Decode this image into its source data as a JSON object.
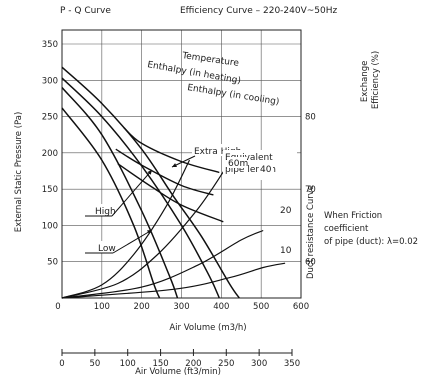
{
  "chart_data": {
    "type": "line",
    "title_left": "P - Q Curve",
    "title_right": "Efficiency Curve – 220-240V~50Hz",
    "ylabel_left": "External Static Pressure (Pa)",
    "ylabel_right": "Exchange Efficiency (%)",
    "duct_axis_label": "Duct resistance Curve",
    "xlabel": "Air Volume (m3/h)",
    "x2label": "Air Volume (ft3/min)",
    "x_ticks": [
      0,
      100,
      200,
      300,
      400,
      500,
      600
    ],
    "x2_ticks": [
      0,
      50,
      100,
      150,
      200,
      250,
      300,
      350
    ],
    "y_ticks": [
      50,
      100,
      150,
      200,
      250,
      300,
      350
    ],
    "y2_ticks": [
      60,
      70,
      80
    ],
    "xlim": [
      0,
      600
    ],
    "ylim": [
      0,
      350
    ],
    "x2lim": [
      0,
      353
    ],
    "y2lim": [
      50,
      80
    ],
    "grid": true,
    "pq_series": [
      {
        "id": "extra-high-a",
        "points": [
          [
            0,
            318
          ],
          [
            100,
            268
          ],
          [
            200,
            205
          ],
          [
            280,
            140
          ],
          [
            350,
            85
          ],
          [
            420,
            20
          ],
          [
            445,
            0
          ]
        ]
      },
      {
        "id": "extra-high-b",
        "points": [
          [
            0,
            303
          ],
          [
            100,
            250
          ],
          [
            200,
            182
          ],
          [
            300,
            100
          ],
          [
            370,
            30
          ],
          [
            395,
            0
          ]
        ]
      },
      {
        "id": "high",
        "points": [
          [
            0,
            290
          ],
          [
            100,
            225
          ],
          [
            200,
            120
          ],
          [
            270,
            30
          ],
          [
            290,
            0
          ]
        ]
      },
      {
        "id": "low",
        "points": [
          [
            0,
            262
          ],
          [
            100,
            190
          ],
          [
            180,
            100
          ],
          [
            230,
            20
          ],
          [
            245,
            0
          ]
        ]
      }
    ],
    "efficiency_series": [
      {
        "name": "Temperature",
        "points": [
          [
            155,
            78.5
          ],
          [
            200,
            76.3
          ],
          [
            300,
            73.8
          ],
          [
            395,
            72.3
          ]
        ]
      },
      {
        "name": "Enthalpy (in heating)",
        "points": [
          [
            135,
            75.5
          ],
          [
            200,
            73.3
          ],
          [
            300,
            70.5
          ],
          [
            380,
            69.2
          ]
        ]
      },
      {
        "name": "Enthalpy (in cooling)",
        "points": [
          [
            140,
            73.5
          ],
          [
            220,
            70.5
          ],
          [
            300,
            67.8
          ],
          [
            405,
            65.5
          ]
        ]
      }
    ],
    "duct_curves": [
      {
        "label": "60m",
        "points": [
          [
            0,
            0
          ],
          [
            100,
            18
          ],
          [
            180,
            60
          ],
          [
            260,
            125
          ],
          [
            320,
            190
          ]
        ]
      },
      {
        "label": "40",
        "points": [
          [
            0,
            0
          ],
          [
            140,
            20
          ],
          [
            240,
            60
          ],
          [
            340,
            122
          ],
          [
            410,
            178
          ]
        ]
      },
      {
        "label": "20",
        "points": [
          [
            0,
            0
          ],
          [
            200,
            15
          ],
          [
            340,
            45
          ],
          [
            450,
            80
          ],
          [
            505,
            93
          ]
        ]
      },
      {
        "label": "10",
        "points": [
          [
            0,
            0
          ],
          [
            280,
            12
          ],
          [
            420,
            28
          ],
          [
            505,
            42
          ],
          [
            560,
            48
          ]
        ]
      }
    ],
    "annotations": {
      "extra_high": "Extra High",
      "high": "High",
      "low": "Low",
      "equivalent_pipe_length": [
        "Equivalent",
        "pipe length"
      ],
      "friction_note": [
        "When Friction",
        "coefficient",
        "of pipe (duct): λ=0.02"
      ]
    }
  }
}
